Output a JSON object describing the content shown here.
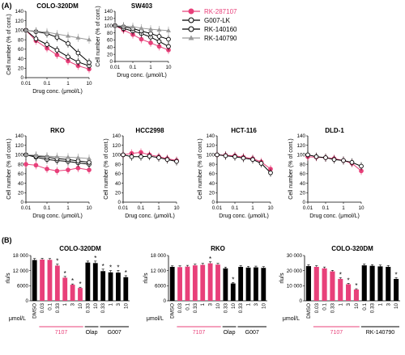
{
  "panel_labels": {
    "A": "(A)",
    "B": "(B)"
  },
  "legend": [
    {
      "name": "RK-287107",
      "color": "#e8407a",
      "marker": "circle-filled"
    },
    {
      "name": "G007-LK",
      "color": "#000000",
      "marker": "circle-open"
    },
    {
      "name": "RK-140160",
      "color": "#000000",
      "marker": "circle-open-gray"
    },
    {
      "name": "RK-140790",
      "color": "#9a9a9a",
      "marker": "triangle"
    }
  ],
  "colors": {
    "pink": "#e8407a",
    "black": "#000000",
    "gray": "#9a9a9a"
  },
  "chart_data": [
    {
      "type": "line",
      "title": "COLO-320DM",
      "xlabel": "Drug conc. (μmol/L)",
      "ylabel": "Cell number (% of cont.)",
      "xscale": "log",
      "xlim": [
        0.01,
        10
      ],
      "ylim": [
        0,
        140
      ],
      "xticks": [
        "0.01",
        "0.1",
        "1",
        "10"
      ],
      "yticks": [
        "0",
        "20",
        "40",
        "60",
        "80",
        "100",
        "120",
        "140"
      ],
      "x": [
        0.01,
        0.03,
        0.1,
        0.3,
        1,
        3,
        10
      ],
      "series": [
        {
          "name": "RK-287107",
          "values": [
            100,
            78,
            62,
            48,
            35,
            25,
            18
          ]
        },
        {
          "name": "G007-LK",
          "values": [
            100,
            82,
            70,
            58,
            44,
            33,
            25
          ]
        },
        {
          "name": "RK-140160",
          "values": [
            100,
            97,
            93,
            85,
            72,
            52,
            32
          ]
        },
        {
          "name": "RK-140790",
          "values": [
            100,
            98,
            96,
            92,
            88,
            84,
            80
          ]
        }
      ]
    },
    {
      "type": "line",
      "title": "SW403",
      "xlabel": "Drug conc. (μmol/L)",
      "ylabel": "Cell number (% of cont.)",
      "xscale": "log",
      "xlim": [
        0.01,
        10
      ],
      "ylim": [
        0,
        140
      ],
      "xticks": [
        "0.01",
        "0.1",
        "1",
        "10"
      ],
      "yticks": [
        "0",
        "20",
        "40",
        "60",
        "80",
        "100",
        "120",
        "140"
      ],
      "x": [
        0.01,
        0.03,
        0.1,
        0.3,
        1,
        3,
        10
      ],
      "series": [
        {
          "name": "RK-287107",
          "values": [
            100,
            88,
            75,
            62,
            52,
            42,
            32
          ]
        },
        {
          "name": "G007-LK",
          "values": [
            100,
            92,
            85,
            78,
            68,
            56,
            42
          ]
        },
        {
          "name": "RK-140160",
          "values": [
            100,
            97,
            92,
            85,
            78,
            70,
            62
          ]
        },
        {
          "name": "RK-140790",
          "values": [
            100,
            99,
            97,
            93,
            90,
            88,
            86
          ]
        }
      ]
    },
    {
      "type": "line",
      "title": "RKO",
      "xlabel": "Drug conc. (μmol/L)",
      "ylabel": "Cell number (% of cont.)",
      "xscale": "log",
      "xlim": [
        0.01,
        10
      ],
      "ylim": [
        0,
        140
      ],
      "xticks": [
        "0.01",
        "0.1",
        "1",
        "10"
      ],
      "yticks": [
        "0",
        "20",
        "40",
        "60",
        "80",
        "100",
        "120",
        "140"
      ],
      "x": [
        0.01,
        0.03,
        0.1,
        0.3,
        1,
        3,
        10
      ],
      "series": [
        {
          "name": "RK-287107",
          "values": [
            80,
            78,
            70,
            66,
            68,
            72,
            68
          ]
        },
        {
          "name": "G007-LK",
          "values": [
            100,
            95,
            90,
            88,
            86,
            83,
            80
          ]
        },
        {
          "name": "RK-140160",
          "values": [
            100,
            97,
            95,
            92,
            90,
            87,
            84
          ]
        },
        {
          "name": "RK-140790",
          "values": [
            100,
            99,
            97,
            96,
            95,
            94,
            92
          ]
        }
      ]
    },
    {
      "type": "line",
      "title": "HCC2998",
      "xlabel": "Drug conc. (μmol/L)",
      "ylabel": "Cell number (% of cont.)",
      "xscale": "log",
      "xlim": [
        0.01,
        10
      ],
      "ylim": [
        0,
        140
      ],
      "xticks": [
        "0.01",
        "0.1",
        "1",
        "10"
      ],
      "yticks": [
        "0",
        "20",
        "40",
        "60",
        "80",
        "100",
        "120",
        "140"
      ],
      "x": [
        0.01,
        0.03,
        0.1,
        0.3,
        1,
        3,
        10
      ],
      "series": [
        {
          "name": "RK-287107",
          "values": [
            100,
            103,
            105,
            100,
            96,
            92,
            88
          ]
        },
        {
          "name": "G007-LK",
          "values": [
            100,
            96,
            96,
            97,
            94,
            90,
            86
          ]
        }
      ]
    },
    {
      "type": "line",
      "title": "HCT-116",
      "xlabel": "Drug conc. (μmol/L)",
      "ylabel": "Cell number (% of cont.)",
      "xscale": "log",
      "xlim": [
        0.01,
        10
      ],
      "ylim": [
        0,
        140
      ],
      "xticks": [
        "0.01",
        "0.1",
        "1",
        "10"
      ],
      "yticks": [
        "0",
        "20",
        "40",
        "60",
        "80",
        "100",
        "120",
        "140"
      ],
      "x": [
        0.01,
        0.03,
        0.1,
        0.3,
        1,
        3,
        10
      ],
      "series": [
        {
          "name": "RK-287107",
          "values": [
            100,
            99,
            98,
            95,
            92,
            85,
            70
          ]
        },
        {
          "name": "G007-LK",
          "values": [
            100,
            98,
            96,
            93,
            90,
            82,
            62
          ]
        }
      ]
    },
    {
      "type": "line",
      "title": "DLD-1",
      "xlabel": "Drug conc. (μmol/L)",
      "ylabel": "Cell number (% of cont.)",
      "xscale": "log",
      "xlim": [
        0.01,
        10
      ],
      "ylim": [
        0,
        140
      ],
      "xticks": [
        "0.01",
        "0.1",
        "1",
        "10"
      ],
      "yticks": [
        "0",
        "20",
        "40",
        "60",
        "80",
        "100",
        "120",
        "140"
      ],
      "x": [
        0.01,
        0.03,
        0.1,
        0.3,
        1,
        3,
        10
      ],
      "series": [
        {
          "name": "RK-287107",
          "values": [
            96,
            95,
            94,
            92,
            88,
            82,
            66
          ]
        },
        {
          "name": "G007-LK",
          "values": [
            100,
            96,
            94,
            90,
            88,
            84,
            76
          ]
        }
      ]
    },
    {
      "type": "bar",
      "title": "COLO-320DM",
      "ylabel": "rlu/s",
      "ylim": [
        0,
        18000
      ],
      "yticks": [
        "0",
        "6000",
        "12 000",
        "18 000"
      ],
      "categories": [
        "DMSO",
        "0.03",
        "0.1",
        "0.33",
        "1",
        "3",
        "10",
        "0.33",
        "10",
        "0.33",
        "1",
        "3",
        "10"
      ],
      "values": [
        16200,
        16400,
        16300,
        14000,
        9200,
        6400,
        5100,
        15200,
        15000,
        11800,
        11300,
        11200,
        9400
      ],
      "errors": [
        600,
        500,
        500,
        600,
        500,
        300,
        300,
        600,
        800,
        800,
        700,
        900,
        600
      ],
      "bar_colors": [
        "#000000",
        "#e8407a",
        "#e8407a",
        "#e8407a",
        "#e8407a",
        "#e8407a",
        "#e8407a",
        "#000000",
        "#000000",
        "#000000",
        "#000000",
        "#000000",
        "#000000"
      ],
      "significant": [
        false,
        false,
        false,
        true,
        true,
        true,
        true,
        false,
        true,
        true,
        true,
        true,
        true
      ],
      "x_unit": "μmol/L",
      "groups": [
        {
          "label": "7107",
          "color": "#e8407a",
          "from": 1,
          "to": 6
        },
        {
          "label": "Olap",
          "color": "#000000",
          "from": 7,
          "to": 8
        },
        {
          "label": "G007",
          "color": "#000000",
          "from": 9,
          "to": 12
        }
      ]
    },
    {
      "type": "bar",
      "title": "RKO",
      "ylabel": "rlu/s",
      "ylim": [
        0,
        18000
      ],
      "yticks": [
        "0",
        "6000",
        "12 000",
        "18 000"
      ],
      "categories": [
        "DMSO",
        "0.03",
        "0.1",
        "0.33",
        "1",
        "3",
        "10",
        "0.33",
        "10",
        "0.33",
        "1",
        "3",
        "10"
      ],
      "values": [
        13500,
        13400,
        13600,
        14100,
        14300,
        14900,
        14400,
        12900,
        6900,
        13500,
        13200,
        13300,
        13100
      ],
      "errors": [
        400,
        500,
        500,
        500,
        600,
        600,
        500,
        500,
        400,
        500,
        500,
        500,
        500
      ],
      "bar_colors": [
        "#000000",
        "#e8407a",
        "#e8407a",
        "#e8407a",
        "#e8407a",
        "#e8407a",
        "#e8407a",
        "#000000",
        "#000000",
        "#000000",
        "#000000",
        "#000000",
        "#000000"
      ],
      "significant": [
        false,
        false,
        false,
        false,
        false,
        true,
        false,
        false,
        true,
        false,
        false,
        false,
        false
      ],
      "x_unit": "μmol/L",
      "groups": [
        {
          "label": "7107",
          "color": "#e8407a",
          "from": 1,
          "to": 6
        },
        {
          "label": "Olap",
          "color": "#000000",
          "from": 7,
          "to": 8
        },
        {
          "label": "G007",
          "color": "#000000",
          "from": 9,
          "to": 12
        }
      ]
    },
    {
      "type": "bar",
      "title": "COLO-320DM",
      "ylabel": "rlu/s",
      "ylim": [
        0,
        30000
      ],
      "yticks": [
        "0",
        "10 000",
        "20 000",
        "30 000"
      ],
      "categories": [
        "DMSO",
        "0.03",
        "0.1",
        "0.33",
        "1",
        "3",
        "10",
        "0.1",
        "0.33",
        "1",
        "3",
        "10"
      ],
      "values": [
        23000,
        22500,
        21500,
        19500,
        14500,
        11000,
        7500,
        23500,
        23200,
        22800,
        22500,
        14500
      ],
      "errors": [
        900,
        800,
        900,
        700,
        800,
        600,
        500,
        900,
        800,
        900,
        900,
        900
      ],
      "bar_colors": [
        "#000000",
        "#e8407a",
        "#e8407a",
        "#e8407a",
        "#e8407a",
        "#e8407a",
        "#e8407a",
        "#000000",
        "#000000",
        "#000000",
        "#000000",
        "#000000"
      ],
      "significant": [
        false,
        false,
        false,
        false,
        true,
        true,
        true,
        false,
        false,
        false,
        false,
        true
      ],
      "x_unit": "μmol/L",
      "groups": [
        {
          "label": "7107",
          "color": "#e8407a",
          "from": 1,
          "to": 6
        },
        {
          "label": "RK-140790",
          "color": "#000000",
          "from": 7,
          "to": 11
        }
      ]
    }
  ]
}
